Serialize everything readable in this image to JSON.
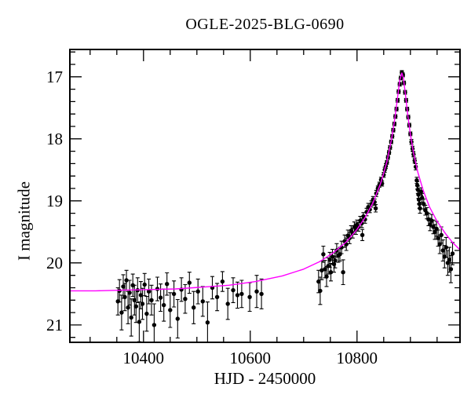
{
  "figure": {
    "background": "#ffffff"
  },
  "chart_data": {
    "type": "scatter",
    "title": "OGLE-2025-BLG-0690",
    "xlabel": "HJD - 2450000",
    "ylabel": "I magnitude",
    "xlim": [
      10262,
      10993
    ],
    "ylim": [
      16.56,
      21.28
    ],
    "y_axis_inverted": true,
    "grid": false,
    "legend": "none",
    "x_major_ticks": [
      10400,
      10600,
      10800
    ],
    "x_minor_step": 50,
    "y_major_ticks": [
      17,
      18,
      19,
      20,
      21
    ],
    "y_minor_step": 0.2,
    "colors": {
      "model": "#ff00ff",
      "marker": "#000000",
      "frame": "#000000",
      "text": "#000000"
    },
    "model_params_note": "point-lens microlensing model: peak HJD'=10884, peak I=16.94, baseline I=20.45",
    "model_curve": [
      [
        10262,
        20.45
      ],
      [
        10310,
        20.45
      ],
      [
        10360,
        20.44
      ],
      [
        10410,
        20.43
      ],
      [
        10460,
        20.42
      ],
      [
        10510,
        20.39
      ],
      [
        10560,
        20.36
      ],
      [
        10610,
        20.3
      ],
      [
        10660,
        20.21
      ],
      [
        10700,
        20.1
      ],
      [
        10730,
        19.98
      ],
      [
        10755,
        19.84
      ],
      [
        10780,
        19.66
      ],
      [
        10800,
        19.46
      ],
      [
        10815,
        19.27
      ],
      [
        10830,
        19.03
      ],
      [
        10845,
        18.7
      ],
      [
        10856,
        18.37
      ],
      [
        10865,
        17.99
      ],
      [
        10871,
        17.66
      ],
      [
        10876,
        17.33
      ],
      [
        10880,
        17.06
      ],
      [
        10882,
        17.0
      ],
      [
        10884,
        16.94
      ],
      [
        10887,
        17.02
      ],
      [
        10891,
        17.31
      ],
      [
        10895,
        17.61
      ],
      [
        10900,
        17.93
      ],
      [
        10906,
        18.23
      ],
      [
        10914,
        18.54
      ],
      [
        10924,
        18.83
      ],
      [
        10936,
        19.1
      ],
      [
        10950,
        19.33
      ],
      [
        10966,
        19.53
      ],
      [
        10979,
        19.67
      ],
      [
        10993,
        19.79
      ]
    ],
    "points": [
      [
        10352,
        20.62,
        0.22
      ],
      [
        10355,
        20.45,
        0.18
      ],
      [
        10359,
        20.8,
        0.28
      ],
      [
        10362,
        20.38,
        0.19
      ],
      [
        10365,
        20.55,
        0.22
      ],
      [
        10368,
        20.28,
        0.16
      ],
      [
        10371,
        20.72,
        0.26
      ],
      [
        10374,
        20.48,
        0.2
      ],
      [
        10377,
        20.88,
        0.3
      ],
      [
        10380,
        20.36,
        0.18
      ],
      [
        10383,
        20.6,
        0.24
      ],
      [
        10386,
        20.7,
        0.26
      ],
      [
        10389,
        20.44,
        0.2
      ],
      [
        10392,
        20.95,
        0.32
      ],
      [
        10395,
        20.52,
        0.22
      ],
      [
        10398,
        20.66,
        0.25
      ],
      [
        10402,
        20.35,
        0.18
      ],
      [
        10406,
        20.82,
        0.28
      ],
      [
        10410,
        20.46,
        0.2
      ],
      [
        10415,
        20.6,
        0.24
      ],
      [
        10420,
        21.0,
        0.34
      ],
      [
        10426,
        20.42,
        0.19
      ],
      [
        10432,
        20.56,
        0.22
      ],
      [
        10438,
        20.68,
        0.26
      ],
      [
        10444,
        20.34,
        0.18
      ],
      [
        10450,
        20.76,
        0.28
      ],
      [
        10457,
        20.5,
        0.21
      ],
      [
        10464,
        20.9,
        0.31
      ],
      [
        10471,
        20.43,
        0.19
      ],
      [
        10478,
        20.58,
        0.23
      ],
      [
        10486,
        20.32,
        0.17
      ],
      [
        10494,
        20.72,
        0.26
      ],
      [
        10502,
        20.46,
        0.2
      ],
      [
        10511,
        20.62,
        0.24
      ],
      [
        10520,
        20.96,
        0.33
      ],
      [
        10529,
        20.4,
        0.18
      ],
      [
        10538,
        20.55,
        0.22
      ],
      [
        10548,
        20.3,
        0.16
      ],
      [
        10558,
        20.66,
        0.25
      ],
      [
        10568,
        20.44,
        0.2
      ],
      [
        10576,
        20.52,
        0.21
      ],
      [
        10584,
        20.5,
        0.22
      ],
      [
        10599,
        20.55,
        0.23
      ],
      [
        10612,
        20.46,
        0.26
      ],
      [
        10621,
        20.5,
        0.24
      ],
      [
        10728,
        20.3,
        0.18
      ],
      [
        10731,
        20.45,
        0.22
      ],
      [
        10734,
        20.12,
        0.15
      ],
      [
        10737,
        19.86,
        0.13
      ],
      [
        10740,
        20.1,
        0.14
      ],
      [
        10743,
        20.22,
        0.16
      ],
      [
        10746,
        20.05,
        0.13
      ],
      [
        10749,
        19.95,
        0.12
      ],
      [
        10751,
        20.15,
        0.14
      ],
      [
        10754,
        19.9,
        0.12
      ],
      [
        10757,
        20.02,
        0.13
      ],
      [
        10759,
        19.96,
        0.12
      ],
      [
        10762,
        19.8,
        0.11
      ],
      [
        10765,
        19.88,
        0.11
      ],
      [
        10768,
        19.86,
        0.11
      ],
      [
        10771,
        19.75,
        0.1
      ],
      [
        10774,
        20.15,
        0.2
      ],
      [
        10777,
        19.65,
        0.1
      ],
      [
        10780,
        19.7,
        0.1
      ],
      [
        10783,
        19.56,
        0.09
      ],
      [
        10786,
        19.6,
        0.09
      ],
      [
        10789,
        19.48,
        0.08
      ],
      [
        10792,
        19.52,
        0.08
      ],
      [
        10795,
        19.42,
        0.08
      ],
      [
        10798,
        19.46,
        0.08
      ],
      [
        10800,
        19.38,
        0.07
      ],
      [
        10803,
        19.42,
        0.07
      ],
      [
        10806,
        19.32,
        0.07
      ],
      [
        10809,
        19.36,
        0.07
      ],
      [
        10810,
        19.55,
        0.09
      ],
      [
        10812,
        19.25,
        0.06
      ],
      [
        10815,
        19.3,
        0.06
      ],
      [
        10818,
        19.18,
        0.06
      ],
      [
        10821,
        19.1,
        0.06
      ],
      [
        10824,
        19.14,
        0.05
      ],
      [
        10827,
        19.05,
        0.05
      ],
      [
        10830,
        18.98,
        0.05
      ],
      [
        10833,
        19.02,
        0.05
      ],
      [
        10835,
        19.12,
        0.06
      ],
      [
        10836,
        18.88,
        0.05
      ],
      [
        10839,
        18.8,
        0.04
      ],
      [
        10842,
        18.74,
        0.04
      ],
      [
        10845,
        18.66,
        0.04
      ],
      [
        10847,
        18.72,
        0.04
      ],
      [
        10850,
        18.58,
        0.04
      ],
      [
        10852,
        18.5,
        0.04
      ],
      [
        10854,
        18.44,
        0.04
      ],
      [
        10856,
        18.38,
        0.03
      ],
      [
        10858,
        18.3,
        0.03
      ],
      [
        10860,
        18.22,
        0.03
      ],
      [
        10862,
        18.14,
        0.03
      ],
      [
        10864,
        18.05,
        0.03
      ],
      [
        10866,
        17.96,
        0.03
      ],
      [
        10868,
        17.86,
        0.03
      ],
      [
        10870,
        17.76,
        0.03
      ],
      [
        10872,
        17.64,
        0.03
      ],
      [
        10874,
        17.52,
        0.03
      ],
      [
        10876,
        17.38,
        0.03
      ],
      [
        10878,
        17.24,
        0.03
      ],
      [
        10880,
        17.12,
        0.03
      ],
      [
        10882,
        17.02,
        0.03
      ],
      [
        10884,
        16.93,
        0.03
      ],
      [
        10886,
        16.97,
        0.03
      ],
      [
        10888,
        17.1,
        0.03
      ],
      [
        10890,
        17.25,
        0.03
      ],
      [
        10892,
        17.38,
        0.03
      ],
      [
        10894,
        17.52,
        0.03
      ],
      [
        10896,
        17.65,
        0.03
      ],
      [
        10898,
        17.78,
        0.03
      ],
      [
        10900,
        17.92,
        0.03
      ],
      [
        10902,
        18.05,
        0.04
      ],
      [
        10904,
        18.16,
        0.04
      ],
      [
        10906,
        18.25,
        0.04
      ],
      [
        10908,
        18.35,
        0.04
      ],
      [
        10910,
        18.45,
        0.05
      ],
      [
        10912,
        18.67,
        0.05
      ],
      [
        10913,
        18.75,
        0.06
      ],
      [
        10914,
        18.82,
        0.06
      ],
      [
        10915,
        18.9,
        0.06
      ],
      [
        10916,
        18.98,
        0.07
      ],
      [
        10917,
        19.05,
        0.07
      ],
      [
        10918,
        19.12,
        0.08
      ],
      [
        10920,
        18.85,
        0.06
      ],
      [
        10922,
        18.95,
        0.07
      ],
      [
        10925,
        19.05,
        0.08
      ],
      [
        10928,
        19.15,
        0.08
      ],
      [
        10931,
        19.2,
        0.09
      ],
      [
        10934,
        19.3,
        0.1
      ],
      [
        10937,
        19.38,
        0.1
      ],
      [
        10940,
        19.32,
        0.1
      ],
      [
        10943,
        19.42,
        0.11
      ],
      [
        10946,
        19.5,
        0.12
      ],
      [
        10949,
        19.45,
        0.12
      ],
      [
        10952,
        19.6,
        0.13
      ],
      [
        10955,
        19.7,
        0.15
      ],
      [
        10958,
        19.55,
        0.13
      ],
      [
        10961,
        19.8,
        0.17
      ],
      [
        10964,
        19.9,
        0.18
      ],
      [
        10967,
        19.75,
        0.16
      ],
      [
        10970,
        20.0,
        0.2
      ],
      [
        10973,
        19.95,
        0.2
      ],
      [
        10976,
        20.1,
        0.22
      ],
      [
        10979,
        19.85,
        0.18
      ]
    ]
  }
}
